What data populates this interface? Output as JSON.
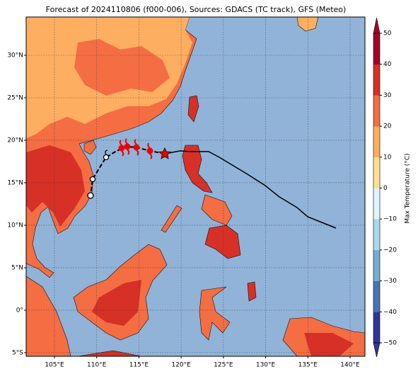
{
  "chart_data": {
    "type": "map",
    "title": "Forecast of 2024110806 (f000-006), Sources: GDACS (TC track), GFS (Meteo)",
    "xlim": [
      101.65,
      141.76
    ],
    "ylim": [
      -5.42,
      34.5
    ],
    "xticks": [
      {
        "value": 105,
        "label": "105°E"
      },
      {
        "value": 110,
        "label": "110°E"
      },
      {
        "value": 115,
        "label": "115°E"
      },
      {
        "value": 120,
        "label": "120°E"
      },
      {
        "value": 125,
        "label": "125°E"
      },
      {
        "value": 130,
        "label": "130°E"
      },
      {
        "value": 135,
        "label": "135°E"
      },
      {
        "value": 140,
        "label": "140°E"
      }
    ],
    "yticks": [
      {
        "value": -5,
        "label": "5°S"
      },
      {
        "value": 0,
        "label": "0°"
      },
      {
        "value": 5,
        "label": "5°N"
      },
      {
        "value": 10,
        "label": "10°N"
      },
      {
        "value": 15,
        "label": "15°N"
      },
      {
        "value": 20,
        "label": "20°N"
      },
      {
        "value": 25,
        "label": "25°N"
      },
      {
        "value": 30,
        "label": "30°N"
      }
    ],
    "grid": true,
    "colorbar": {
      "label": "Max Temperature (°C)",
      "lim": [
        -50,
        50
      ],
      "colors": [
        "#313695",
        "#4575b4",
        "#74add1",
        "#abd9e9",
        "#e0f3f8",
        "#fee090",
        "#fdae61",
        "#f46d43",
        "#d73027",
        "#a50026"
      ],
      "ticks": [
        {
          "value": -50,
          "label": "−50"
        },
        {
          "value": -40,
          "label": "−40"
        },
        {
          "value": -30,
          "label": "−30"
        },
        {
          "value": -20,
          "label": "−20"
        },
        {
          "value": -10,
          "label": "−10"
        },
        0,
        10,
        20,
        30,
        40,
        50
      ]
    }
  }
}
